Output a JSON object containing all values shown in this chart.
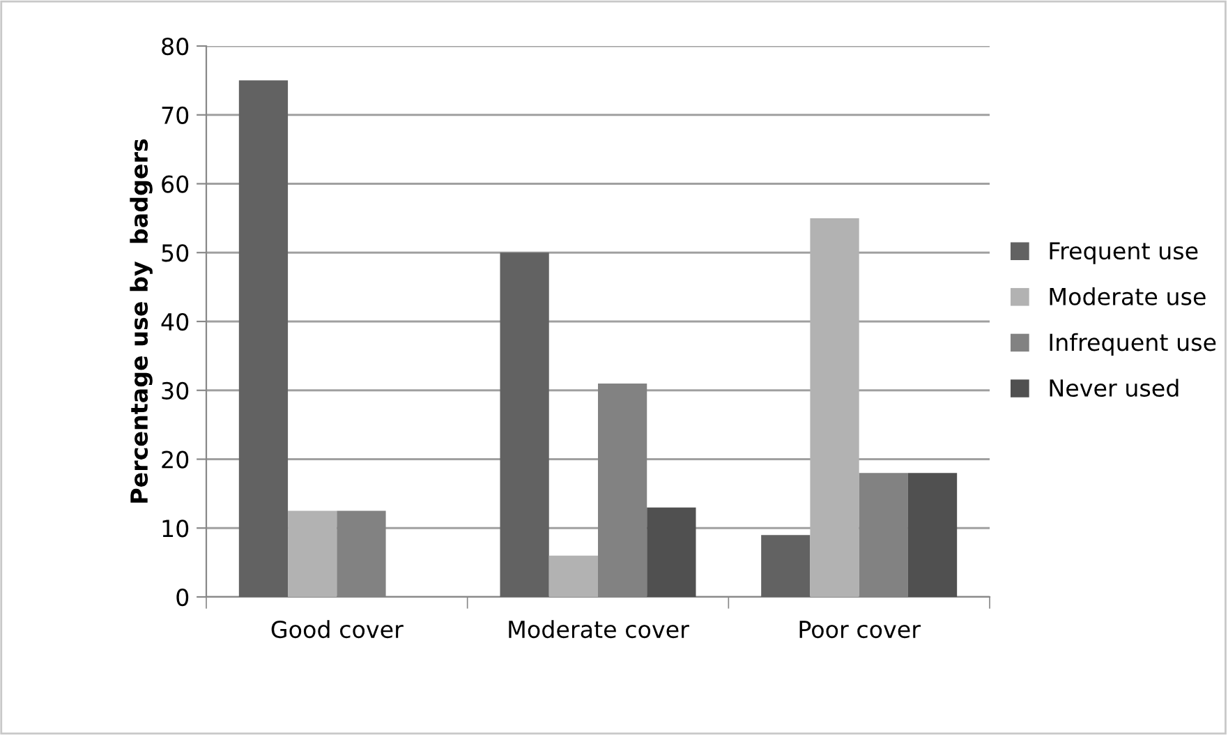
{
  "chart_data": {
    "type": "bar",
    "ylabel": "Percentage use by  badgers",
    "categories": [
      "Good cover",
      "Moderate cover",
      "Poor cover"
    ],
    "series": [
      {
        "name": "Frequent use",
        "color": "#626262",
        "values": [
          75,
          50,
          9
        ]
      },
      {
        "name": "Moderate use",
        "color": "#b2b2b2",
        "values": [
          12.5,
          6,
          55
        ]
      },
      {
        "name": "Infrequent use",
        "color": "#828282",
        "values": [
          12.5,
          31,
          18
        ]
      },
      {
        "name": "Never used",
        "color": "#505050",
        "values": [
          0,
          13,
          18
        ]
      }
    ],
    "ylim": [
      0,
      80
    ],
    "yticks": [
      0,
      10,
      20,
      30,
      40,
      50,
      60,
      70,
      80
    ],
    "grid": "y",
    "legend": "right"
  }
}
